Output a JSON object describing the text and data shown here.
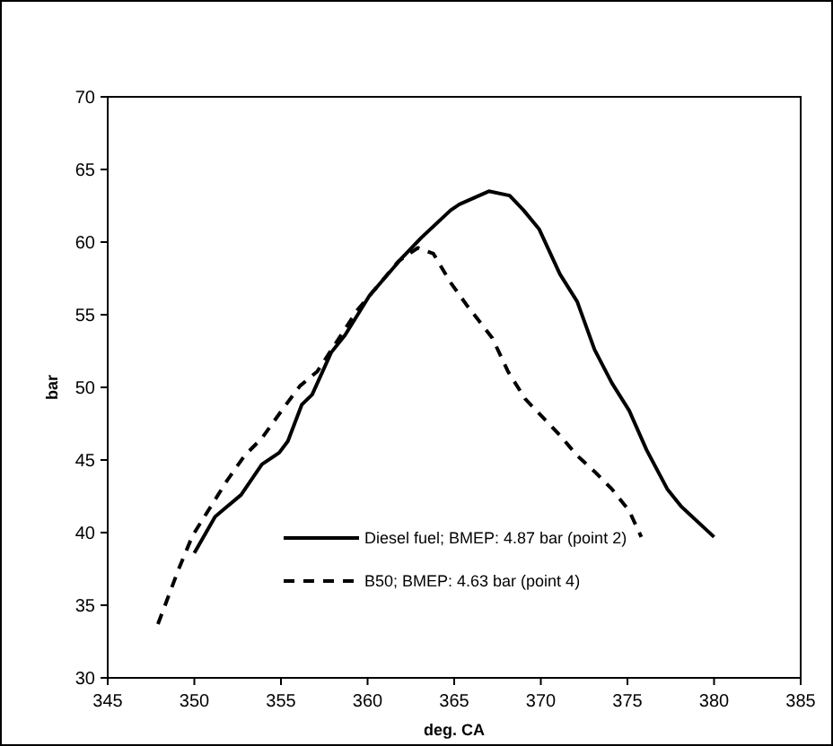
{
  "chart_data": {
    "type": "line",
    "xlabel": "deg. CA",
    "ylabel": "bar",
    "xlim": [
      345,
      385
    ],
    "ylim": [
      30,
      70
    ],
    "xticks": [
      345,
      350,
      355,
      360,
      365,
      370,
      375,
      380,
      385
    ],
    "yticks": [
      30,
      35,
      40,
      45,
      50,
      55,
      60,
      65,
      70
    ],
    "grid": false,
    "legend": "bottom right",
    "marker": "none",
    "series": [
      {
        "name": "Diesel fuel; BMEP: 4.87 bar (point 2)",
        "color": "#000000",
        "line_style": "solid",
        "x": [
          350,
          351.2,
          352.7,
          353.9,
          354.9,
          355.4,
          356.2,
          356.8,
          357.9,
          358.7,
          360.1,
          361.9,
          363.1,
          364.8,
          365.3,
          367,
          368.2,
          369,
          369.9,
          371.1,
          372.1,
          373.1,
          374.1,
          375.1,
          376.1,
          377.3,
          378.1,
          380
        ],
        "values": [
          38.6,
          41.1,
          42.6,
          44.7,
          45.5,
          46.3,
          48.8,
          49.5,
          52.4,
          53.6,
          56.3,
          58.8,
          60.3,
          62.2,
          62.6,
          63.5,
          63.2,
          62.2,
          60.9,
          57.8,
          55.9,
          52.6,
          50.3,
          48.4,
          45.7,
          43,
          41.8,
          39.7
        ]
      },
      {
        "name": "B50; BMEP: 4.63 bar (point 4)",
        "color": "#000000",
        "line_style": "dashed",
        "x": [
          347.9,
          349.1,
          349.9,
          350.9,
          351.9,
          352.9,
          353.9,
          355.1,
          356.1,
          357.1,
          359.4,
          361.8,
          362.9,
          363.8,
          364.8,
          365.7,
          367.2,
          368.1,
          369.1,
          369.9,
          371.1,
          372.1,
          373.1,
          374.1,
          375.1,
          375.8
        ],
        "values": [
          33.7,
          37.5,
          39.8,
          41.7,
          43.6,
          45.3,
          46.5,
          48.5,
          50.1,
          51.1,
          55.3,
          58.7,
          59.6,
          59.2,
          57.2,
          55.7,
          53.4,
          51.1,
          49.2,
          48.2,
          46.7,
          45.3,
          44.2,
          43,
          41.5,
          39.7
        ]
      }
    ]
  }
}
